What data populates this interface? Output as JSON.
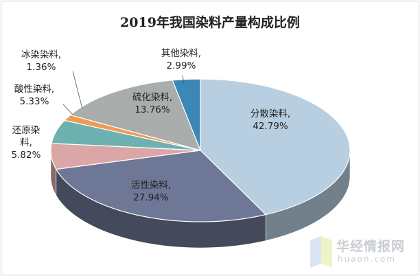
{
  "chart_data": {
    "type": "pie",
    "title": "2019年我国染料产量构成比例",
    "slices": [
      {
        "name": "分散染料",
        "value": 42.79,
        "value_label": "42.79%",
        "color": "#b7cfe0"
      },
      {
        "name": "活性染料",
        "value": 27.94,
        "value_label": "27.94%",
        "color": "#6e7795"
      },
      {
        "name": "还原染料",
        "value": 5.82,
        "value_label": "5.82%",
        "color": "#dba7a6"
      },
      {
        "name": "酸性染料",
        "value": 5.33,
        "value_label": "5.33%",
        "color": "#6db1b0"
      },
      {
        "name": "冰染染料",
        "value": 1.36,
        "value_label": "1.36%",
        "color": "#ee9b54"
      },
      {
        "name": "硫化染料",
        "value": 13.76,
        "value_label": "13.76%",
        "color": "#a9adac"
      },
      {
        "name": "其他染料",
        "value": 2.99,
        "value_label": "2.99%",
        "color": "#3b87b5"
      }
    ],
    "style": "3d-pie",
    "legend": "none"
  },
  "watermark": {
    "name": "华经情报网",
    "url": "huaon.com"
  }
}
